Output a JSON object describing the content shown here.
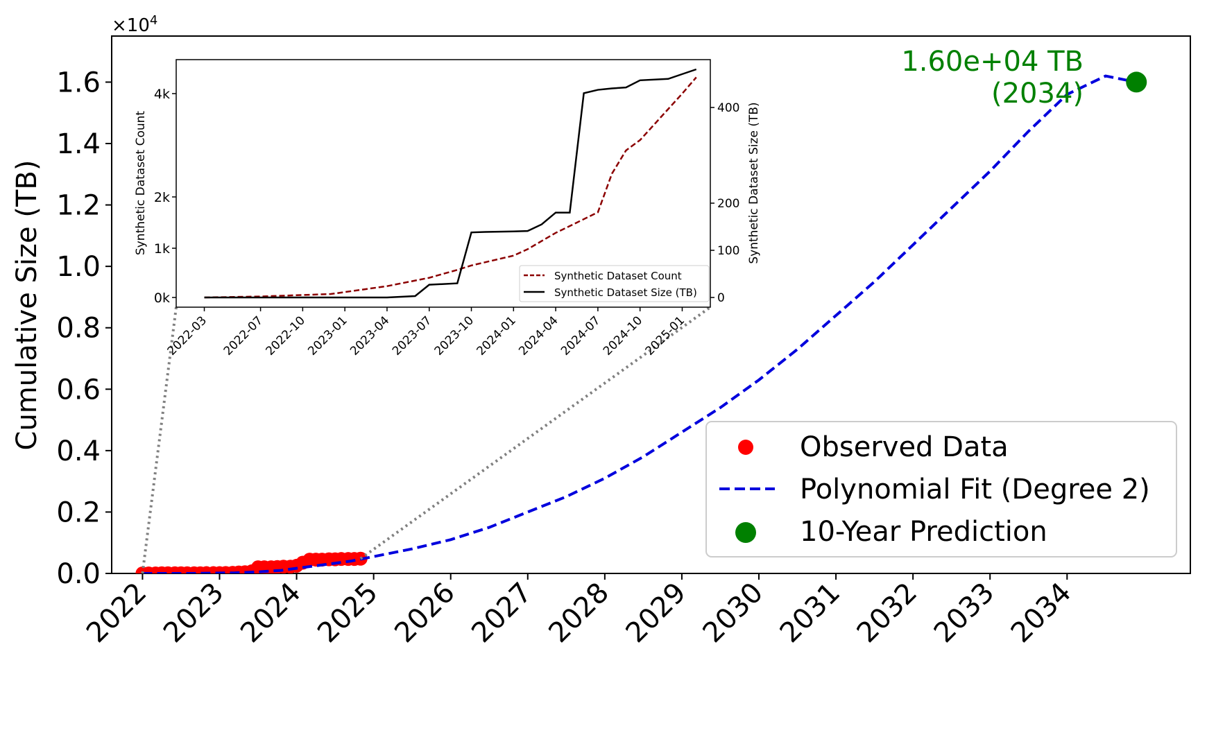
{
  "chart_data": [
    {
      "type": "scatter",
      "ylabel": "Cumulative Size (TB)",
      "y_multiplier": "×10",
      "y_multiplier_exp": "4",
      "xlim": [
        2021.6,
        2035.6
      ],
      "ylim": [
        0,
        1.75
      ],
      "x_ticks": [
        2022,
        2023,
        2024,
        2025,
        2026,
        2027,
        2028,
        2029,
        2030,
        2031,
        2032,
        2033,
        2034
      ],
      "x_tick_labels": [
        "2022",
        "2023",
        "2024",
        "2025",
        "2026",
        "2027",
        "2028",
        "2029",
        "2030",
        "2031",
        "2032",
        "2033",
        "2034"
      ],
      "y_ticks": [
        0,
        0.2,
        0.4,
        0.6,
        0.8,
        1.0,
        1.2,
        1.4,
        1.6
      ],
      "y_tick_labels": [
        "0.0",
        "0.2",
        "0.4",
        "0.6",
        "0.8",
        "1.0",
        "1.2",
        "1.4",
        "1.6"
      ],
      "grid": false,
      "legend_position": "lower-right",
      "series": [
        {
          "name": "Observed Data",
          "kind": "scatter",
          "color": "#ff0000",
          "x": [
            2022.0,
            2022.08,
            2022.17,
            2022.25,
            2022.33,
            2022.42,
            2022.5,
            2022.58,
            2022.67,
            2022.75,
            2022.83,
            2022.92,
            2023.0,
            2023.08,
            2023.17,
            2023.25,
            2023.33,
            2023.42,
            2023.5,
            2023.58,
            2023.67,
            2023.75,
            2023.83,
            2023.92,
            2024.0,
            2024.08,
            2024.17,
            2024.25,
            2024.33,
            2024.42,
            2024.5,
            2024.58,
            2024.67,
            2024.75,
            2024.83
          ],
          "y": [
            0.0,
            0.0,
            0.0,
            0.0005,
            0.0005,
            0.0005,
            0.0005,
            0.0005,
            0.0005,
            0.0005,
            0.001,
            0.001,
            0.001,
            0.0015,
            0.002,
            0.003,
            0.004,
            0.007,
            0.02,
            0.02,
            0.02,
            0.021,
            0.022,
            0.022,
            0.025,
            0.035,
            0.045,
            0.045,
            0.045,
            0.046,
            0.046,
            0.047,
            0.047,
            0.047,
            0.048
          ]
        },
        {
          "name": "Polynomial Fit (Degree 2)",
          "kind": "line",
          "style": "dashed",
          "color": "#0000dd",
          "x": [
            2022.0,
            2022.3,
            2022.6,
            2022.9,
            2023.2,
            2023.5,
            2023.8,
            2024.1,
            2024.4,
            2024.7,
            2025.0,
            2025.5,
            2026.0,
            2026.5,
            2027.0,
            2027.5,
            2028.0,
            2028.5,
            2029.0,
            2029.5,
            2030.0,
            2030.5,
            2031.0,
            2031.5,
            2032.0,
            2032.5,
            2033.0,
            2033.5,
            2034.0,
            2034.5,
            2034.9
          ],
          "y": [
            0.0,
            0.0,
            0.0,
            0.001,
            0.002,
            0.005,
            0.01,
            0.02,
            0.03,
            0.04,
            0.055,
            0.08,
            0.11,
            0.15,
            0.2,
            0.25,
            0.31,
            0.38,
            0.46,
            0.54,
            0.63,
            0.73,
            0.84,
            0.95,
            1.07,
            1.19,
            1.31,
            1.44,
            1.56,
            1.62,
            1.6
          ]
        },
        {
          "name": "10-Year Prediction",
          "kind": "scatter",
          "color": "#008000",
          "x": [
            2034.9
          ],
          "y": [
            1.6
          ]
        }
      ],
      "annotations": [
        {
          "line1": "1.60e+04 TB",
          "line2": "(2034)",
          "color": "#008000"
        }
      ]
    },
    {
      "type": "line",
      "ylabel": "Synthetic Dataset Count",
      "y2label": "Synthetic Dataset Size (TB)",
      "x_ticks": [
        "2022-03",
        "2022-07",
        "2022-10",
        "2023-01",
        "2023-04",
        "2023-07",
        "2023-10",
        "2024-01",
        "2024-04",
        "2024-07",
        "2024-10",
        "2025-01"
      ],
      "y_ticks": [
        0,
        1000,
        2000,
        4000
      ],
      "y_tick_labels": [
        "0k",
        "1k",
        "2k",
        "4k"
      ],
      "y2_ticks": [
        0,
        100,
        200,
        400
      ],
      "y2_tick_labels": [
        "0",
        "100",
        "200",
        "400"
      ],
      "yscale": "symlog",
      "legend_position": "lower-right",
      "series": [
        {
          "name": "Synthetic Dataset Count",
          "axis": "left",
          "style": "dashed",
          "color": "#8b0000",
          "x": [
            "2022-03",
            "2022-07",
            "2022-10",
            "2022-12",
            "2023-01",
            "2023-04",
            "2023-07",
            "2023-09",
            "2023-10",
            "2024-01",
            "2024-02",
            "2024-04",
            "2024-07",
            "2024-08",
            "2024-09",
            "2024-10",
            "2024-11",
            "2024-12",
            "2025-01",
            "2025-02"
          ],
          "y": [
            0,
            20,
            50,
            70,
            110,
            230,
            400,
            560,
            650,
            850,
            980,
            1300,
            1700,
            2450,
            2900,
            3100,
            3400,
            3700,
            4000,
            4300
          ]
        },
        {
          "name": "Synthetic Dataset Size (TB)",
          "axis": "right",
          "style": "solid",
          "color": "#000000",
          "x": [
            "2022-03",
            "2023-04",
            "2023-06",
            "2023-07",
            "2023-09",
            "2023-10",
            "2023-11",
            "2024-01",
            "2024-02",
            "2024-03",
            "2024-04",
            "2024-05",
            "2024-06",
            "2024-07",
            "2024-08",
            "2024-09",
            "2024-10",
            "2024-12",
            "2025-01",
            "2025-02"
          ],
          "y": [
            0,
            0,
            3,
            27,
            30,
            138,
            139,
            140,
            141,
            155,
            180,
            180,
            430,
            437,
            440,
            442,
            457,
            460,
            470,
            480
          ]
        }
      ]
    }
  ]
}
